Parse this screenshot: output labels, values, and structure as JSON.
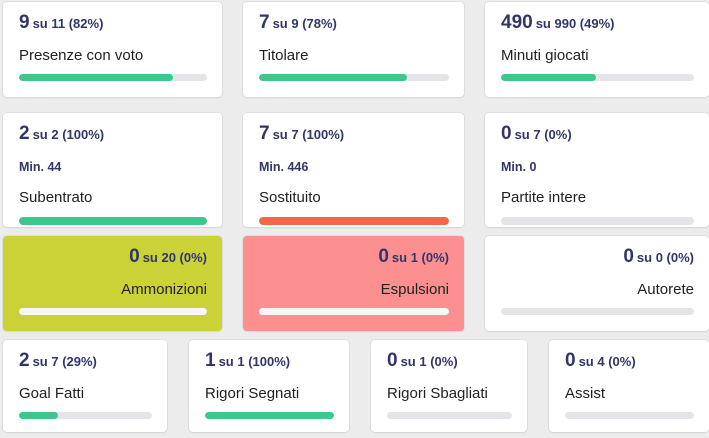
{
  "page": {
    "background": "#ececec"
  },
  "colors": {
    "card_bg": "#ffffff",
    "stat_navy": "#32356a",
    "label_dark": "#212121",
    "bar_green": "#3cc88c",
    "bar_orange": "#f2684a",
    "card_yellow": "#cbd237",
    "card_pink": "#fc9090",
    "track_gray": "#e3e5e8",
    "track_on_color": "#f7f7f7"
  },
  "rows": [
    {
      "cards": [
        {
          "name": "presenze-con-voto",
          "value": "9",
          "suffix": "su 11 (82%)",
          "label": "Presenze con voto",
          "percent": "82%",
          "bar_color": "#3cc88c",
          "bg": "#ffffff",
          "track": "#e3e5e8"
        },
        {
          "name": "titolare",
          "value": "7",
          "suffix": "su 9 (78%)",
          "label": "Titolare",
          "percent": "78%",
          "bar_color": "#3cc88c",
          "bg": "#ffffff",
          "track": "#e3e5e8"
        },
        {
          "name": "minuti-giocati",
          "value": "490",
          "suffix": "su 990 (49%)",
          "label": "Minuti giocati",
          "percent": "49%",
          "bar_color": "#3cc88c",
          "bg": "#ffffff",
          "track": "#e3e5e8"
        }
      ]
    },
    {
      "cards": [
        {
          "name": "subentrato",
          "value": "2",
          "suffix": "su 2 (100%)",
          "min": "Min. 44",
          "label": "Subentrato",
          "percent": "100%",
          "bar_color": "#3cc88c",
          "bg": "#ffffff",
          "track": "#e3e5e8"
        },
        {
          "name": "sostituito",
          "value": "7",
          "suffix": "su 7 (100%)",
          "min": "Min. 446",
          "label": "Sostituito",
          "percent": "100%",
          "bar_color": "#f2684a",
          "bg": "#ffffff",
          "track": "#e3e5e8"
        },
        {
          "name": "partite-intere",
          "value": "0",
          "suffix": "su 7 (0%)",
          "min": "Min. 0",
          "label": "Partite intere",
          "percent": "0%",
          "bar_color": "#3cc88c",
          "bg": "#ffffff",
          "track": "#e3e5e8"
        }
      ]
    },
    {
      "cards": [
        {
          "name": "ammonizioni",
          "value": "0",
          "suffix": "su 20 (0%)",
          "label": "Ammonizioni",
          "percent": "0%",
          "bar_color": "#3cc88c",
          "bg": "#cbd237",
          "track": "#f7f7f7"
        },
        {
          "name": "espulsioni",
          "value": "0",
          "suffix": "su 1 (0%)",
          "label": "Espulsioni",
          "percent": "0%",
          "bar_color": "#3cc88c",
          "bg": "#fc9090",
          "track": "#f7f7f7"
        },
        {
          "name": "autorete",
          "value": "0",
          "suffix": "su 0 (0%)",
          "label": "Autorete",
          "percent": "0%",
          "bar_color": "#3cc88c",
          "bg": "#ffffff",
          "track": "#e3e5e8"
        }
      ]
    },
    {
      "cards": [
        {
          "name": "goal-fatti",
          "value": "2",
          "suffix": "su 7 (29%)",
          "label": "Goal Fatti",
          "percent": "29%",
          "bar_color": "#3cc88c",
          "bg": "#ffffff",
          "track": "#e3e5e8"
        },
        {
          "name": "rigori-segnati",
          "value": "1",
          "suffix": "su 1 (100%)",
          "label": "Rigori Segnati",
          "percent": "100%",
          "bar_color": "#3cc88c",
          "bg": "#ffffff",
          "track": "#e3e5e8"
        },
        {
          "name": "rigori-sbagliati",
          "value": "0",
          "suffix": "su 1 (0%)",
          "label": "Rigori Sbagliati",
          "percent": "0%",
          "bar_color": "#3cc88c",
          "bg": "#ffffff",
          "track": "#e3e5e8"
        },
        {
          "name": "assist",
          "value": "0",
          "suffix": "su 4 (0%)",
          "label": "Assist",
          "percent": "0%",
          "bar_color": "#3cc88c",
          "bg": "#ffffff",
          "track": "#e3e5e8"
        }
      ]
    }
  ]
}
